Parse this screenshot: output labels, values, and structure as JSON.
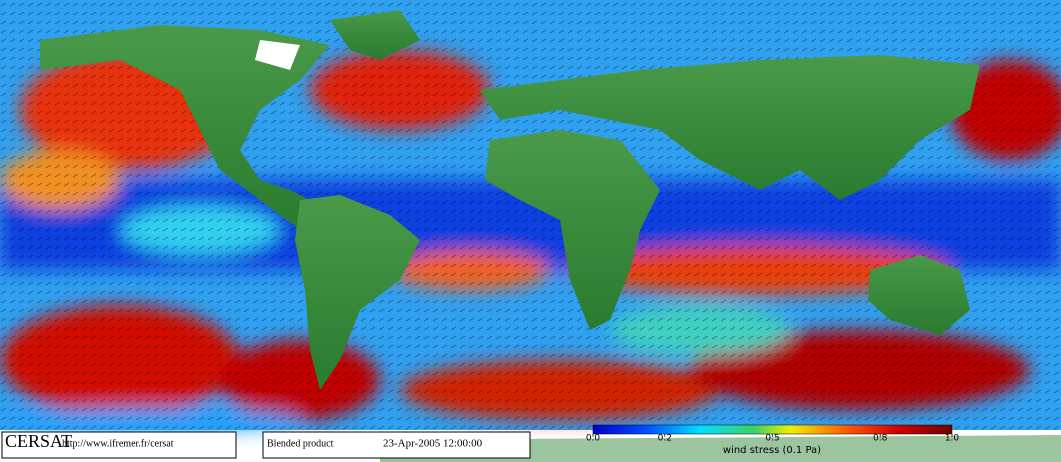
{
  "footer": {
    "logo": "CERSAT",
    "url": "http://www.ifremer.fr/cersat",
    "product": "Blended product",
    "date": "23-Apr-2005 12:00:00"
  },
  "colorbar": {
    "label": "wind stress (0.1 Pa)",
    "xlim": [
      0,
      1
    ],
    "xticks": [
      {
        "value": 0,
        "label": "0.0"
      },
      0.2,
      0.5,
      0.8,
      {
        "value": 1,
        "label": "1.0"
      }
    ]
  }
}
